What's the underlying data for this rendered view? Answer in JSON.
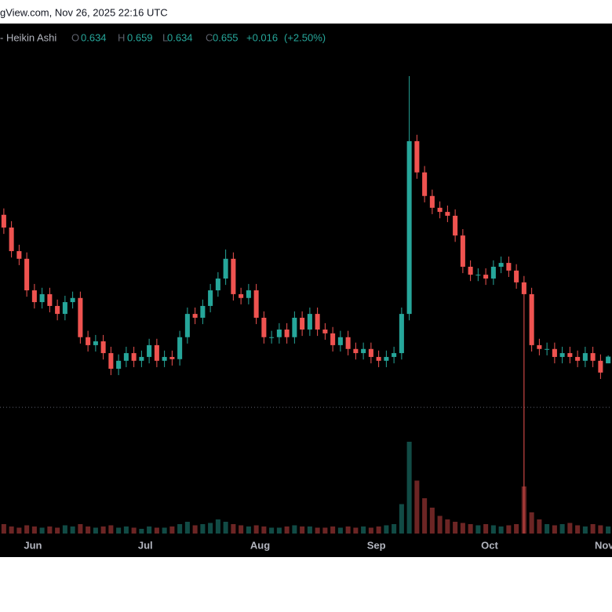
{
  "chart_data": {
    "type": "candlestick",
    "title": "gView.com, Nov 26, 2025 22:16 UTC",
    "series_name": "- Heikin Ashi",
    "ohlc_labels": [
      "O",
      "H",
      "L",
      "C"
    ],
    "change": {
      "value": 0.016,
      "label": "+0.016"
    },
    "change_pct": {
      "value": 2.5,
      "label": "(+2.50%)"
    },
    "colors": {
      "up": "#26a69a",
      "down": "#ef5350"
    },
    "open": [
      1.1,
      1.06,
      0.986,
      0.962,
      0.863,
      0.826,
      0.851,
      0.814,
      0.789,
      0.826,
      0.839,
      0.716,
      0.691,
      0.703,
      0.666,
      0.617,
      0.642,
      0.666,
      0.642,
      0.654,
      0.691,
      0.642,
      0.654,
      0.647,
      0.716,
      0.789,
      0.777,
      0.814,
      0.863,
      0.9,
      0.962,
      0.851,
      0.839,
      0.863,
      0.777,
      0.716,
      0.716,
      0.74,
      0.716,
      0.777,
      0.74,
      0.789,
      0.74,
      0.728,
      0.691,
      0.716,
      0.679,
      0.666,
      0.679,
      0.654,
      0.642,
      0.654,
      0.666,
      0.789,
      1.331,
      1.233,
      1.159,
      1.122,
      1.109,
      1.097,
      1.035,
      0.937,
      0.912,
      0.912,
      0.9,
      0.937,
      0.949,
      0.925,
      0.888,
      0.851,
      0.691,
      0.679,
      0.679,
      0.654,
      0.666,
      0.654,
      0.642,
      0.666,
      0.642,
      0.634
    ],
    "high": [
      1.12,
      1.08,
      1.006,
      0.982,
      0.883,
      0.871,
      0.871,
      0.834,
      0.846,
      0.859,
      0.859,
      0.736,
      0.723,
      0.723,
      0.686,
      0.662,
      0.686,
      0.686,
      0.674,
      0.711,
      0.711,
      0.674,
      0.674,
      0.736,
      0.809,
      0.809,
      0.834,
      0.883,
      0.92,
      0.991,
      0.982,
      0.871,
      0.883,
      0.883,
      0.797,
      0.736,
      0.76,
      0.76,
      0.797,
      0.797,
      0.809,
      0.809,
      0.76,
      0.748,
      0.736,
      0.736,
      0.699,
      0.699,
      0.699,
      0.674,
      0.674,
      0.686,
      0.809,
      1.535,
      1.351,
      1.253,
      1.179,
      1.142,
      1.129,
      1.117,
      1.055,
      0.957,
      0.932,
      0.932,
      0.957,
      0.969,
      0.969,
      0.945,
      0.908,
      0.871,
      0.711,
      0.699,
      0.699,
      0.686,
      0.686,
      0.674,
      0.686,
      0.686,
      0.662,
      0.659
    ],
    "low": [
      1.04,
      0.966,
      0.942,
      0.843,
      0.806,
      0.806,
      0.794,
      0.769,
      0.769,
      0.806,
      0.696,
      0.671,
      0.671,
      0.646,
      0.597,
      0.597,
      0.622,
      0.622,
      0.622,
      0.634,
      0.622,
      0.622,
      0.627,
      0.627,
      0.696,
      0.757,
      0.757,
      0.794,
      0.843,
      0.88,
      0.831,
      0.819,
      0.819,
      0.757,
      0.696,
      0.696,
      0.696,
      0.696,
      0.696,
      0.72,
      0.72,
      0.72,
      0.708,
      0.671,
      0.671,
      0.659,
      0.646,
      0.646,
      0.634,
      0.622,
      0.622,
      0.634,
      0.646,
      0.769,
      1.213,
      1.139,
      1.102,
      1.089,
      1.077,
      1.015,
      0.917,
      0.892,
      0.892,
      0.88,
      0.88,
      0.917,
      0.905,
      0.868,
      0.1,
      0.671,
      0.659,
      0.659,
      0.634,
      0.634,
      0.634,
      0.622,
      0.622,
      0.622,
      0.585,
      0.634
    ],
    "close": [
      1.06,
      0.986,
      0.962,
      0.863,
      0.826,
      0.851,
      0.814,
      0.789,
      0.826,
      0.839,
      0.716,
      0.691,
      0.703,
      0.666,
      0.617,
      0.642,
      0.666,
      0.642,
      0.654,
      0.691,
      0.642,
      0.654,
      0.647,
      0.716,
      0.789,
      0.777,
      0.814,
      0.863,
      0.9,
      0.962,
      0.851,
      0.839,
      0.863,
      0.777,
      0.716,
      0.716,
      0.74,
      0.716,
      0.777,
      0.74,
      0.789,
      0.74,
      0.728,
      0.691,
      0.716,
      0.679,
      0.666,
      0.679,
      0.654,
      0.642,
      0.654,
      0.666,
      0.789,
      1.331,
      1.233,
      1.159,
      1.122,
      1.109,
      1.097,
      1.035,
      0.937,
      0.912,
      0.912,
      0.9,
      0.937,
      0.949,
      0.925,
      0.888,
      0.851,
      0.691,
      0.679,
      0.679,
      0.654,
      0.666,
      0.654,
      0.642,
      0.666,
      0.642,
      0.605,
      0.655
    ],
    "volume": [
      8,
      6,
      5,
      7,
      6,
      5,
      6,
      5,
      7,
      6,
      8,
      6,
      5,
      6,
      7,
      5,
      6,
      5,
      4,
      6,
      5,
      5,
      6,
      8,
      10,
      7,
      8,
      9,
      12,
      10,
      8,
      7,
      6,
      7,
      6,
      5,
      5,
      6,
      7,
      6,
      6,
      5,
      5,
      6,
      5,
      6,
      5,
      6,
      5,
      6,
      7,
      8,
      25,
      78,
      45,
      30,
      22,
      15,
      12,
      10,
      9,
      8,
      7,
      8,
      7,
      6,
      7,
      8,
      40,
      18,
      12,
      8,
      7,
      8,
      9,
      7,
      6,
      8,
      7,
      6
    ],
    "xlim": [
      -0.5,
      79.5
    ],
    "xticks": [
      {
        "value": 3.8,
        "label": "Jun"
      },
      {
        "value": 18.5,
        "label": "Jul"
      },
      {
        "value": 33.5,
        "label": "Aug"
      },
      {
        "value": 48.7,
        "label": "Sep"
      },
      {
        "value": 63.5,
        "label": "Oct"
      },
      {
        "value": 78.5,
        "label": "Nov"
      }
    ],
    "ylim": [
      0.1,
      1.7
    ],
    "vlim": [
      0,
      100
    ],
    "reference_line": 0.496
  }
}
